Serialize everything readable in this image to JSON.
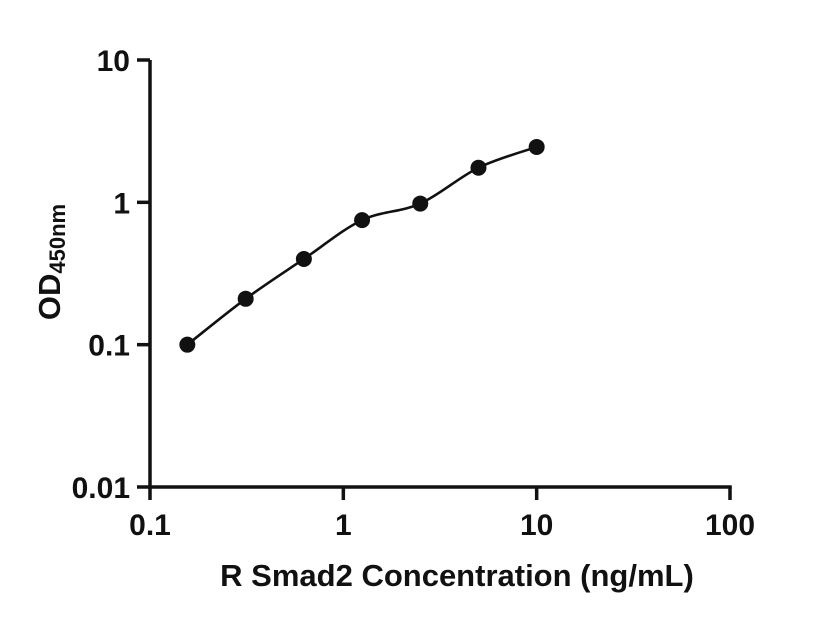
{
  "chart_data": {
    "type": "scatter",
    "x_scale": "log",
    "y_scale": "log",
    "x": [
      0.156,
      0.3125,
      0.625,
      1.25,
      2.5,
      5,
      10
    ],
    "y": [
      0.1,
      0.21,
      0.4,
      0.75,
      0.98,
      1.75,
      2.45
    ],
    "title": "",
    "xlabel": "R Smad2 Concentration (ng/mL)",
    "ylabel": "OD",
    "ylabel_subscript": "450nm",
    "xlim": [
      0.1,
      100
    ],
    "ylim": [
      0.01,
      10
    ],
    "x_ticks": [
      0.1,
      1,
      10,
      100
    ],
    "x_tick_labels": [
      "0.1",
      "1",
      "10",
      "100"
    ],
    "y_ticks": [
      0.01,
      0.1,
      1,
      10
    ],
    "y_tick_labels": [
      "0.01",
      "0.1",
      "1",
      "10"
    ],
    "grid": false,
    "legend": false,
    "colors": {
      "axis": "#111111",
      "marker": "#111111",
      "curve": "#111111",
      "background": "#ffffff"
    }
  }
}
